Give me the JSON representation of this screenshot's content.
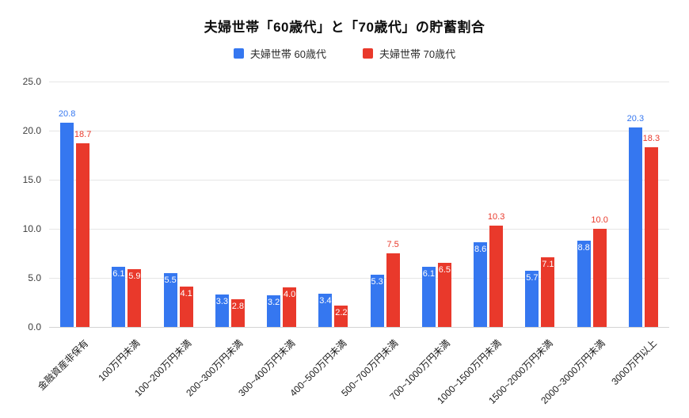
{
  "chart_data": {
    "type": "bar",
    "title": "夫婦世帯「60歳代」と「70歳代」の貯蓄割合",
    "categories": [
      "金融資産非保有",
      "100万円未満",
      "100~200万円未満",
      "200~300万円未満",
      "300~400万円未満",
      "400~500万円未満",
      "500~700万円未満",
      "700~1000万円未満",
      "1000~1500万円未満",
      "1500~2000万円未満",
      "2000~3000万円未満",
      "3000万円以上"
    ],
    "series": [
      {
        "name": "夫婦世帯 60歳代",
        "color": "#3577f0",
        "values": [
          20.8,
          6.1,
          5.5,
          3.3,
          3.2,
          3.4,
          5.3,
          6.1,
          8.6,
          5.7,
          8.8,
          20.3
        ],
        "label_placement": [
          "outside",
          "inside",
          "inside",
          "inside",
          "inside",
          "inside",
          "inside",
          "inside",
          "inside",
          "inside",
          "inside",
          "outside"
        ]
      },
      {
        "name": "夫婦世帯 70歳代",
        "color": "#e9392b",
        "values": [
          18.7,
          5.9,
          4.1,
          2.8,
          4.0,
          2.2,
          7.5,
          6.5,
          10.3,
          7.1,
          10.0,
          18.3
        ],
        "label_placement": [
          "outside",
          "inside",
          "inside",
          "inside",
          "inside",
          "inside",
          "outside",
          "inside",
          "outside",
          "inside",
          "outside",
          "outside"
        ]
      }
    ],
    "y_ticks": [
      0.0,
      5.0,
      10.0,
      15.0,
      20.0,
      25.0
    ],
    "ylim": [
      0,
      25
    ],
    "grid": true,
    "legend_position": "top"
  }
}
